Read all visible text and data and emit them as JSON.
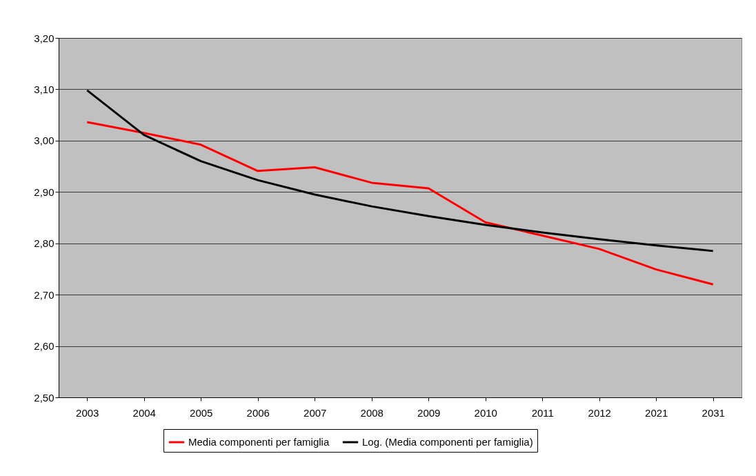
{
  "chart_data": {
    "type": "line",
    "categories": [
      "2003",
      "2004",
      "2005",
      "2006",
      "2007",
      "2008",
      "2009",
      "2010",
      "2011",
      "2012",
      "2021",
      "2031"
    ],
    "series": [
      {
        "name": "Media componenti per famiglia",
        "color": "#ff0000",
        "values": [
          3.036,
          3.015,
          2.992,
          2.941,
          2.948,
          2.918,
          2.907,
          2.841,
          2.815,
          2.789,
          2.749,
          2.72
        ]
      },
      {
        "name": "Log. (Media componenti per famiglia)",
        "color": "#000000",
        "values": [
          3.098,
          3.011,
          2.96,
          2.923,
          2.895,
          2.872,
          2.853,
          2.836,
          2.821,
          2.808,
          2.796,
          2.785
        ]
      }
    ],
    "ylim": [
      2.5,
      3.2
    ],
    "yticks": [
      {
        "value": 2.5,
        "label": "2,50"
      },
      {
        "value": 2.6,
        "label": "2,60"
      },
      {
        "value": 2.7,
        "label": "2,70"
      },
      {
        "value": 2.8,
        "label": "2,80"
      },
      {
        "value": 2.9,
        "label": "2,90"
      },
      {
        "value": 3.0,
        "label": "3,00"
      },
      {
        "value": 3.1,
        "label": "3,10"
      },
      {
        "value": 3.2,
        "label": "3,20"
      }
    ],
    "grid": "y",
    "legend": "bottom",
    "marker": "none",
    "line_style": "solid"
  }
}
